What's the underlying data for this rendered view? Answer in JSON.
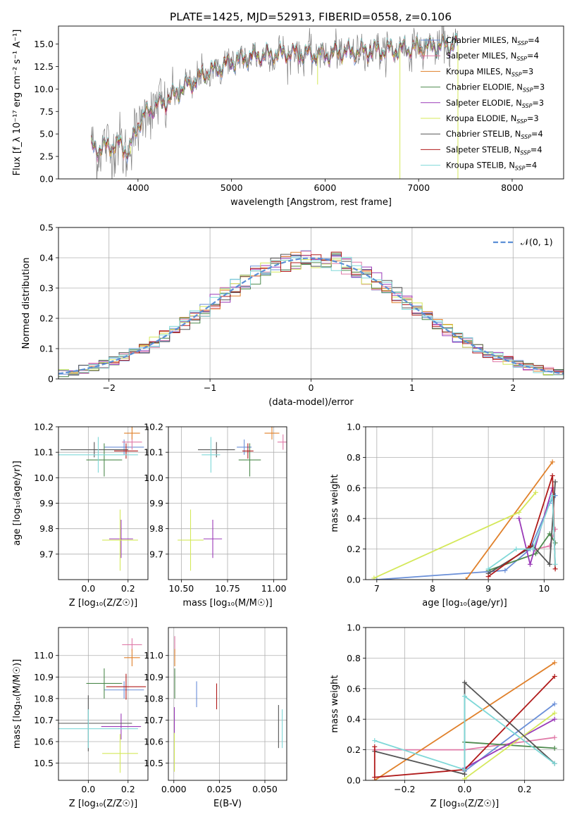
{
  "title": "PLATE=1425, MJD=52913, FIBERID=0558, z=0.106",
  "colors": {
    "chabrier_miles": "#6a8fd8",
    "salpeter_miles": "#e07aa8",
    "kroupa_miles": "#e0802a",
    "chabrier_elodie": "#4e8a4e",
    "salpeter_elodie": "#9a3ab8",
    "kroupa_elodie": "#d4e85a",
    "chabrier_stelib": "#555555",
    "salpeter_stelib": "#b01a1a",
    "kroupa_stelib": "#7fd8d8",
    "data": "#808080",
    "gauss": "#5b8fd6"
  },
  "chart_data": [
    {
      "id": "spectrum",
      "type": "line",
      "xlabel": "wavelength [Angstrom, rest frame]",
      "ylabel": "Flux [f_λ 10⁻¹⁷ erg cm⁻² s⁻¹ A⁻¹]",
      "xlim": [
        3150,
        8550
      ],
      "ylim": [
        0,
        17
      ],
      "xticks": [
        4000,
        5000,
        6000,
        7000,
        8000
      ],
      "yticks": [
        0.0,
        2.5,
        5.0,
        7.5,
        10.0,
        12.5,
        15.0
      ],
      "grid": false,
      "legend_position": "right",
      "legend": [
        {
          "key": "chabrier_miles",
          "main": "Chabrier MILES, N",
          "sub": "SSP",
          "tail": "=4"
        },
        {
          "key": "salpeter_miles",
          "main": "Salpeter MILES, N",
          "sub": "SSP",
          "tail": "=4"
        },
        {
          "key": "kroupa_miles",
          "main": "Kroupa MILES, N",
          "sub": "SSP",
          "tail": "=3"
        },
        {
          "key": "chabrier_elodie",
          "main": "Chabrier ELODIE, N",
          "sub": "SSP",
          "tail": "=3"
        },
        {
          "key": "salpeter_elodie",
          "main": "Salpeter ELODIE, N",
          "sub": "SSP",
          "tail": "=3"
        },
        {
          "key": "kroupa_elodie",
          "main": "Kroupa ELODIE, N",
          "sub": "SSP",
          "tail": "=3"
        },
        {
          "key": "chabrier_stelib",
          "main": "Chabrier STELIB, N",
          "sub": "SSP",
          "tail": "=4"
        },
        {
          "key": "salpeter_stelib",
          "main": "Salpeter STELIB, N",
          "sub": "SSP",
          "tail": "=4"
        },
        {
          "key": "kroupa_stelib",
          "main": "Kroupa STELIB, N",
          "sub": "SSP",
          "tail": "=4"
        }
      ],
      "continuum": {
        "x": [
          3500,
          3600,
          3700,
          3800,
          3900,
          4000,
          4100,
          4200,
          4300,
          4400,
          4500,
          4600,
          4700,
          4800,
          4900,
          5000,
          5200,
          5400,
          5600,
          5800,
          6000,
          6200,
          6400,
          6600,
          6800,
          7000,
          7200,
          7400
        ],
        "y": [
          3.5,
          3.4,
          3.6,
          3.8,
          3.0,
          6.0,
          7.5,
          8.2,
          8.6,
          9.5,
          10.2,
          10.8,
          11.6,
          12.0,
          12.5,
          13.0,
          13.6,
          13.8,
          14.0,
          13.9,
          13.8,
          14.1,
          14.2,
          14.3,
          14.4,
          14.6,
          14.8,
          14.9
        ]
      }
    },
    {
      "id": "residuals",
      "type": "line",
      "xlabel": "(data-model)/error",
      "ylabel": "Normed distribution",
      "xlim": [
        -2.5,
        2.5
      ],
      "ylim": [
        0,
        0.5
      ],
      "xticks": [
        -2,
        -1,
        0,
        1,
        2
      ],
      "yticks": [
        0.0,
        0.1,
        0.2,
        0.3,
        0.4,
        0.5
      ],
      "grid": true,
      "legend_position": "top-right",
      "legend_label": "𝒩(0, 1)",
      "gauss": {
        "mu": 0,
        "sigma": 1
      }
    },
    {
      "id": "age_vs_Z",
      "type": "scatter",
      "xlabel": "Z [log₁₀(Z/Z☉)]",
      "ylabel": "age  [log₁₀(age/yr)]",
      "xlim": [
        -0.15,
        0.3
      ],
      "ylim": [
        9.6,
        10.2
      ],
      "xticks": [
        0.0,
        0.2
      ],
      "yticks": [
        9.7,
        9.8,
        9.9,
        10.0,
        10.1,
        10.2
      ],
      "grid": true,
      "points": [
        {
          "key": "chabrier_miles",
          "x": 0.18,
          "xerr": 0.1,
          "y": 10.12,
          "yerr": 0.03
        },
        {
          "key": "salpeter_miles",
          "x": 0.22,
          "xerr": 0.05,
          "y": 10.14,
          "yerr": 0.03
        },
        {
          "key": "kroupa_miles",
          "x": 0.22,
          "xerr": 0.04,
          "y": 10.175,
          "yerr": 0.025
        },
        {
          "key": "chabrier_elodie",
          "x": 0.08,
          "xerr": 0.09,
          "y": 10.07,
          "yerr": 0.065
        },
        {
          "key": "salpeter_elodie",
          "x": 0.165,
          "xerr": 0.06,
          "y": 9.76,
          "yerr": 0.075
        },
        {
          "key": "kroupa_elodie",
          "x": 0.16,
          "xerr": 0.09,
          "y": 9.755,
          "yerr": 0.12
        },
        {
          "key": "chabrier_stelib",
          "x": 0.03,
          "xerr": 0.17,
          "y": 10.11,
          "yerr": 0.03
        },
        {
          "key": "salpeter_stelib",
          "x": 0.19,
          "xerr": 0.06,
          "y": 10.105,
          "yerr": 0.03
        },
        {
          "key": "kroupa_stelib",
          "x": 0.05,
          "xerr": 0.2,
          "y": 10.09,
          "yerr": 0.07
        }
      ]
    },
    {
      "id": "age_vs_mass",
      "type": "scatter",
      "xlabel": "mass [log₁₀(M/M☉)]",
      "ylabel": "",
      "xlim": [
        10.43,
        11.07
      ],
      "ylim": [
        9.6,
        10.2
      ],
      "xticks": [
        10.5,
        10.75,
        11.0
      ],
      "yticks": [
        9.7,
        9.8,
        9.9,
        10.0,
        10.1,
        10.2
      ],
      "grid": true,
      "points": [
        {
          "key": "chabrier_miles",
          "x": 10.84,
          "xerr": 0.04,
          "y": 10.12,
          "yerr": 0.03
        },
        {
          "key": "salpeter_miles",
          "x": 11.05,
          "xerr": 0.03,
          "y": 10.14,
          "yerr": 0.03
        },
        {
          "key": "kroupa_miles",
          "x": 10.99,
          "xerr": 0.04,
          "y": 10.175,
          "yerr": 0.025
        },
        {
          "key": "chabrier_elodie",
          "x": 10.87,
          "xerr": 0.06,
          "y": 10.07,
          "yerr": 0.065
        },
        {
          "key": "salpeter_elodie",
          "x": 10.67,
          "xerr": 0.05,
          "y": 9.76,
          "yerr": 0.075
        },
        {
          "key": "kroupa_elodie",
          "x": 10.55,
          "xerr": 0.07,
          "y": 9.755,
          "yerr": 0.12
        },
        {
          "key": "chabrier_stelib",
          "x": 10.69,
          "xerr": 0.1,
          "y": 10.11,
          "yerr": 0.03
        },
        {
          "key": "salpeter_stelib",
          "x": 10.86,
          "xerr": 0.03,
          "y": 10.105,
          "yerr": 0.03
        },
        {
          "key": "kroupa_stelib",
          "x": 10.66,
          "xerr": 0.05,
          "y": 10.09,
          "yerr": 0.07
        }
      ]
    },
    {
      "id": "massweight_vs_age",
      "type": "line",
      "xlabel": "age  [log₁₀(age/yr)]",
      "ylabel": "mass weight",
      "xlim": [
        6.8,
        10.35
      ],
      "ylim": [
        0,
        1.0
      ],
      "xticks": [
        7,
        8,
        9,
        10
      ],
      "yticks": [
        0.0,
        0.2,
        0.4,
        0.6,
        0.8,
        1.0
      ],
      "grid": true,
      "series": [
        {
          "key": "chabrier_miles",
          "x": [
            7.0,
            9.3,
            9.75,
            10.1,
            10.2
          ],
          "y": [
            0.0,
            0.06,
            0.2,
            0.5,
            0.55
          ]
        },
        {
          "key": "salpeter_miles",
          "x": [
            9.85,
            10.1,
            10.2
          ],
          "y": [
            0.2,
            0.22,
            0.33
          ]
        },
        {
          "key": "kroupa_miles",
          "x": [
            8.6,
            10.15
          ],
          "y": [
            0.0,
            0.77
          ]
        },
        {
          "key": "chabrier_elodie",
          "x": [
            9.0,
            9.85,
            10.1,
            10.2
          ],
          "y": [
            0.06,
            0.17,
            0.3,
            0.24
          ]
        },
        {
          "key": "salpeter_elodie",
          "x": [
            9.55,
            9.75,
            10.15
          ],
          "y": [
            0.4,
            0.1,
            0.6
          ]
        },
        {
          "key": "kroupa_elodie",
          "x": [
            6.95,
            9.55,
            9.85
          ],
          "y": [
            0.01,
            0.44,
            0.57
          ]
        },
        {
          "key": "chabrier_stelib",
          "x": [
            9.0,
            9.8,
            10.1,
            10.2
          ],
          "y": [
            0.04,
            0.22,
            0.1,
            0.64
          ]
        },
        {
          "key": "salpeter_stelib",
          "x": [
            9.0,
            9.75,
            10.15,
            10.2
          ],
          "y": [
            0.02,
            0.22,
            0.68,
            0.07
          ]
        },
        {
          "key": "kroupa_stelib",
          "x": [
            9.0,
            9.5,
            9.8,
            10.15,
            10.2
          ],
          "y": [
            0.07,
            0.2,
            0.2,
            0.55,
            0.1
          ]
        }
      ]
    },
    {
      "id": "mass_vs_Z",
      "type": "scatter",
      "xlabel": "Z [log₁₀(Z/Z☉)]",
      "ylabel": "mass [log₁₀(M/M☉)]",
      "xlim": [
        -0.15,
        0.3
      ],
      "ylim": [
        10.42,
        11.13
      ],
      "xticks": [
        0.0,
        0.2
      ],
      "yticks": [
        10.5,
        10.6,
        10.7,
        10.8,
        10.9,
        11.0
      ],
      "grid": true,
      "points": [
        {
          "key": "chabrier_miles",
          "x": 0.18,
          "xerr": 0.1,
          "y": 10.84,
          "yerr": 0.04
        },
        {
          "key": "salpeter_miles",
          "x": 0.22,
          "xerr": 0.05,
          "y": 11.05,
          "yerr": 0.03
        },
        {
          "key": "kroupa_miles",
          "x": 0.22,
          "xerr": 0.04,
          "y": 10.99,
          "yerr": 0.04
        },
        {
          "key": "chabrier_elodie",
          "x": 0.08,
          "xerr": 0.09,
          "y": 10.87,
          "yerr": 0.07
        },
        {
          "key": "salpeter_elodie",
          "x": 0.165,
          "xerr": 0.1,
          "y": 10.67,
          "yerr": 0.06
        },
        {
          "key": "kroupa_elodie",
          "x": 0.16,
          "xerr": 0.09,
          "y": 10.545,
          "yerr": 0.09
        },
        {
          "key": "chabrier_stelib",
          "x": 0.0,
          "xerr": 0.22,
          "y": 10.685,
          "yerr": 0.13
        },
        {
          "key": "salpeter_stelib",
          "x": 0.19,
          "xerr": 0.1,
          "y": 10.855,
          "yerr": 0.06
        },
        {
          "key": "kroupa_stelib",
          "x": 0.0,
          "xerr": 0.25,
          "y": 10.66,
          "yerr": 0.09
        }
      ]
    },
    {
      "id": "mass_vs_ebv",
      "type": "scatter",
      "xlabel": "E(B-V)",
      "ylabel": "",
      "xlim": [
        -0.003,
        0.062
      ],
      "ylim": [
        10.42,
        11.13
      ],
      "xticks": [
        0.0,
        0.025,
        0.05
      ],
      "yticks": [
        10.5,
        10.6,
        10.7,
        10.8,
        10.9,
        11.0
      ],
      "grid": true,
      "points": [
        {
          "key": "chabrier_miles",
          "x": 0.0125,
          "xerr": 0,
          "y": 10.82,
          "yerr": 0.06
        },
        {
          "key": "salpeter_miles",
          "x": 0.0005,
          "xerr": 0,
          "y": 11.05,
          "yerr": 0.04
        },
        {
          "key": "kroupa_miles",
          "x": 0.0005,
          "xerr": 0,
          "y": 10.99,
          "yerr": 0.04
        },
        {
          "key": "chabrier_elodie",
          "x": 0.0005,
          "xerr": 0,
          "y": 10.87,
          "yerr": 0.07
        },
        {
          "key": "salpeter_elodie",
          "x": 0.0003,
          "xerr": 0,
          "y": 10.7,
          "yerr": 0.06
        },
        {
          "key": "kroupa_elodie",
          "x": 0.0003,
          "xerr": 0,
          "y": 10.55,
          "yerr": 0.09
        },
        {
          "key": "chabrier_stelib",
          "x": 0.0575,
          "xerr": 0,
          "y": 10.67,
          "yerr": 0.1
        },
        {
          "key": "salpeter_stelib",
          "x": 0.0235,
          "xerr": 0,
          "y": 10.81,
          "yerr": 0.06
        },
        {
          "key": "kroupa_stelib",
          "x": 0.0595,
          "xerr": 0,
          "y": 10.66,
          "yerr": 0.09
        }
      ]
    },
    {
      "id": "massweight_vs_Z",
      "type": "line",
      "xlabel": "Z [log₁₀(Z/Z☉)]",
      "ylabel": "mass weight",
      "xlim": [
        -0.33,
        0.33
      ],
      "ylim": [
        0,
        1.0
      ],
      "xticks": [
        -0.2,
        0.0,
        0.2
      ],
      "yticks": [
        0.0,
        0.2,
        0.4,
        0.6,
        0.8,
        1.0
      ],
      "grid": true,
      "series": [
        {
          "key": "chabrier_miles",
          "x": [
            0.0,
            0.3
          ],
          "y": [
            0.06,
            0.5
          ]
        },
        {
          "key": "salpeter_miles",
          "x": [
            -0.3,
            0.0,
            0.3
          ],
          "y": [
            0.2,
            0.2,
            0.28
          ]
        },
        {
          "key": "kroupa_miles",
          "x": [
            -0.3,
            0.3
          ],
          "y": [
            0.0,
            0.77
          ]
        },
        {
          "key": "chabrier_elodie",
          "x": [
            0.0,
            0.3
          ],
          "y": [
            0.25,
            0.21
          ]
        },
        {
          "key": "salpeter_elodie",
          "x": [
            0.0,
            0.3
          ],
          "y": [
            0.08,
            0.4
          ]
        },
        {
          "key": "kroupa_elodie",
          "x": [
            0.0,
            0.3
          ],
          "y": [
            0.01,
            0.44
          ]
        },
        {
          "key": "chabrier_stelib",
          "x": [
            -0.3,
            0.0,
            0.0,
            0.3
          ],
          "y": [
            0.19,
            0.04,
            0.64,
            0.11
          ]
        },
        {
          "key": "salpeter_stelib",
          "x": [
            -0.3,
            -0.3,
            0.0,
            0.3
          ],
          "y": [
            0.22,
            0.02,
            0.07,
            0.68
          ]
        },
        {
          "key": "kroupa_stelib",
          "x": [
            -0.3,
            0.0,
            0.0,
            0.3
          ],
          "y": [
            0.26,
            0.07,
            0.55,
            0.11
          ]
        }
      ]
    }
  ]
}
